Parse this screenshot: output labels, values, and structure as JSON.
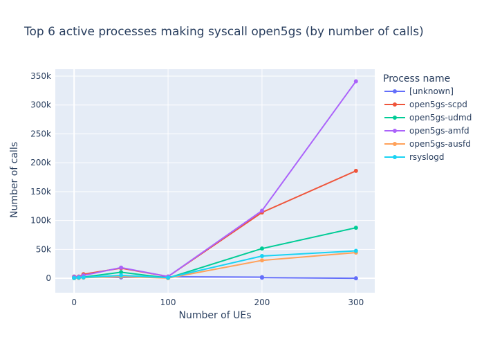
{
  "chart_data": {
    "type": "line",
    "title": "Top 6 active processes making syscall open5gs (by number of calls)",
    "xlabel": "Number of UEs",
    "ylabel": "Number of calls",
    "xlim": [
      -20,
      320
    ],
    "ylim": [
      -25000,
      362000
    ],
    "x_ticks": [
      0,
      100,
      200,
      300
    ],
    "y_ticks": [
      0,
      50000,
      100000,
      150000,
      200000,
      250000,
      300000,
      350000
    ],
    "y_tick_labels": [
      "0",
      "50k",
      "100k",
      "150k",
      "200k",
      "250k",
      "300k",
      "350k"
    ],
    "grid": true,
    "plot_bg": "#e5ecf6",
    "legend": {
      "title": "Process name",
      "position": "right"
    },
    "series": [
      {
        "name": "[unknown]",
        "color": "#636efa",
        "x": [
          0,
          5,
          10,
          50,
          100,
          200,
          200,
          300
        ],
        "y": [
          3000,
          2500,
          2500,
          1500,
          2500,
          2000,
          1000,
          0
        ]
      },
      {
        "name": "open5gs-scpd",
        "color": "#ef553b",
        "x": [
          0,
          5,
          10,
          50,
          100,
          200,
          300
        ],
        "y": [
          2500,
          3000,
          7000,
          17500,
          3000,
          114000,
          186000
        ]
      },
      {
        "name": "open5gs-udmd",
        "color": "#00cc96",
        "x": [
          0,
          5,
          10,
          50,
          100,
          200,
          300
        ],
        "y": [
          200,
          1000,
          2000,
          10500,
          500,
          51500,
          87500
        ]
      },
      {
        "name": "open5gs-amfd",
        "color": "#ab63fa",
        "x": [
          0,
          5,
          10,
          50,
          100,
          200,
          300
        ],
        "y": [
          2000,
          2500,
          5000,
          18500,
          3000,
          117000,
          341000
        ]
      },
      {
        "name": "open5gs-ausfd",
        "color": "#ffa15a",
        "x": [
          0,
          5,
          10,
          50,
          100,
          200,
          300
        ],
        "y": [
          200,
          500,
          1000,
          3000,
          300,
          31000,
          44500
        ]
      },
      {
        "name": "rsyslogd",
        "color": "#19d3f3",
        "x": [
          0,
          5,
          10,
          50,
          100,
          200,
          300
        ],
        "y": [
          500,
          1000,
          1500,
          5000,
          1000,
          38500,
          47500
        ]
      }
    ]
  }
}
